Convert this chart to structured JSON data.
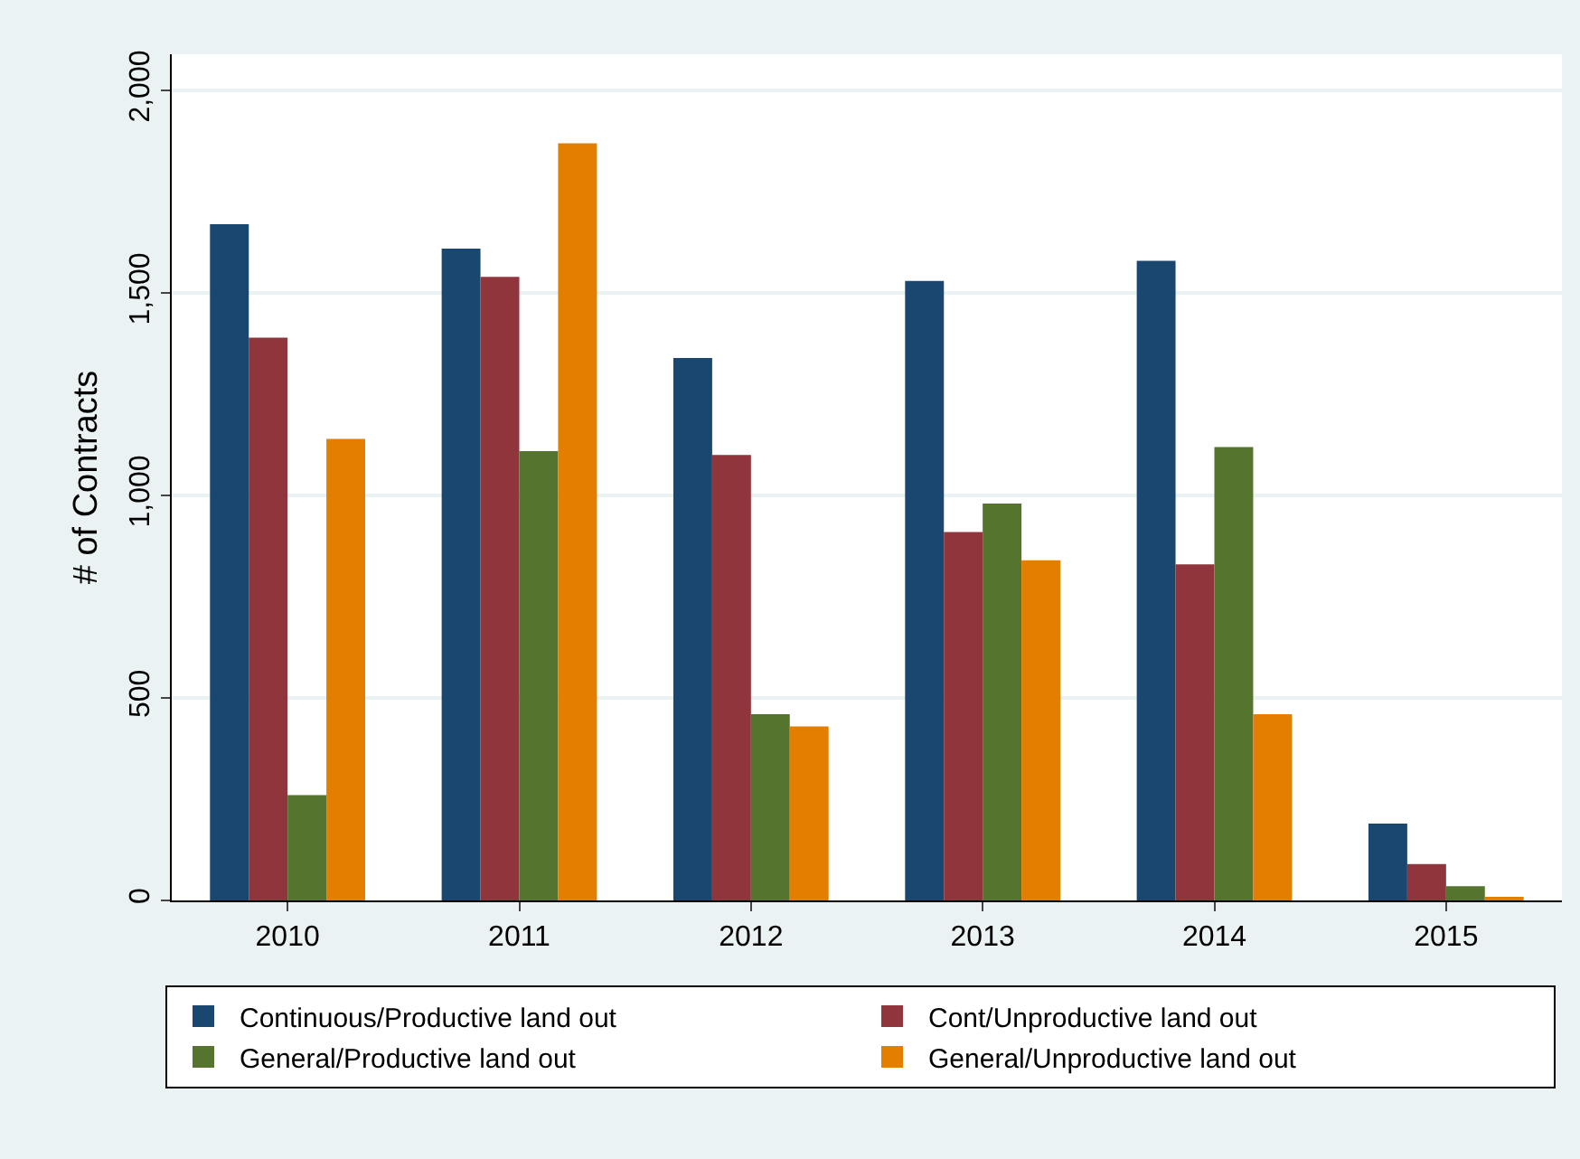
{
  "chart_data": {
    "type": "bar",
    "ylabel": "# of Contracts",
    "categories": [
      "2010",
      "2011",
      "2012",
      "2013",
      "2014",
      "2015"
    ],
    "series": [
      {
        "name": "Continuous/Productive land out",
        "color": "#1a476f",
        "values": [
          1670,
          1610,
          1340,
          1530,
          1580,
          190
        ]
      },
      {
        "name": "Cont/Unproductive land out",
        "color": "#90353b",
        "values": [
          1390,
          1540,
          1100,
          910,
          830,
          90
        ]
      },
      {
        "name": "General/Productive land out",
        "color": "#55752f",
        "values": [
          260,
          1110,
          460,
          980,
          1120,
          35
        ]
      },
      {
        "name": "General/Unproductive land out",
        "color": "#e37e00",
        "values": [
          1140,
          1870,
          430,
          840,
          460,
          5
        ]
      }
    ],
    "ylim": [
      0,
      2090
    ],
    "yticks": [
      {
        "value": 0,
        "label": "0"
      },
      {
        "value": 500,
        "label": "500"
      },
      {
        "value": 1000,
        "label": "1,000"
      },
      {
        "value": 1500,
        "label": "1,500"
      },
      {
        "value": 2000,
        "label": "2,000"
      }
    ],
    "grid": "y",
    "legend": "bottom"
  }
}
